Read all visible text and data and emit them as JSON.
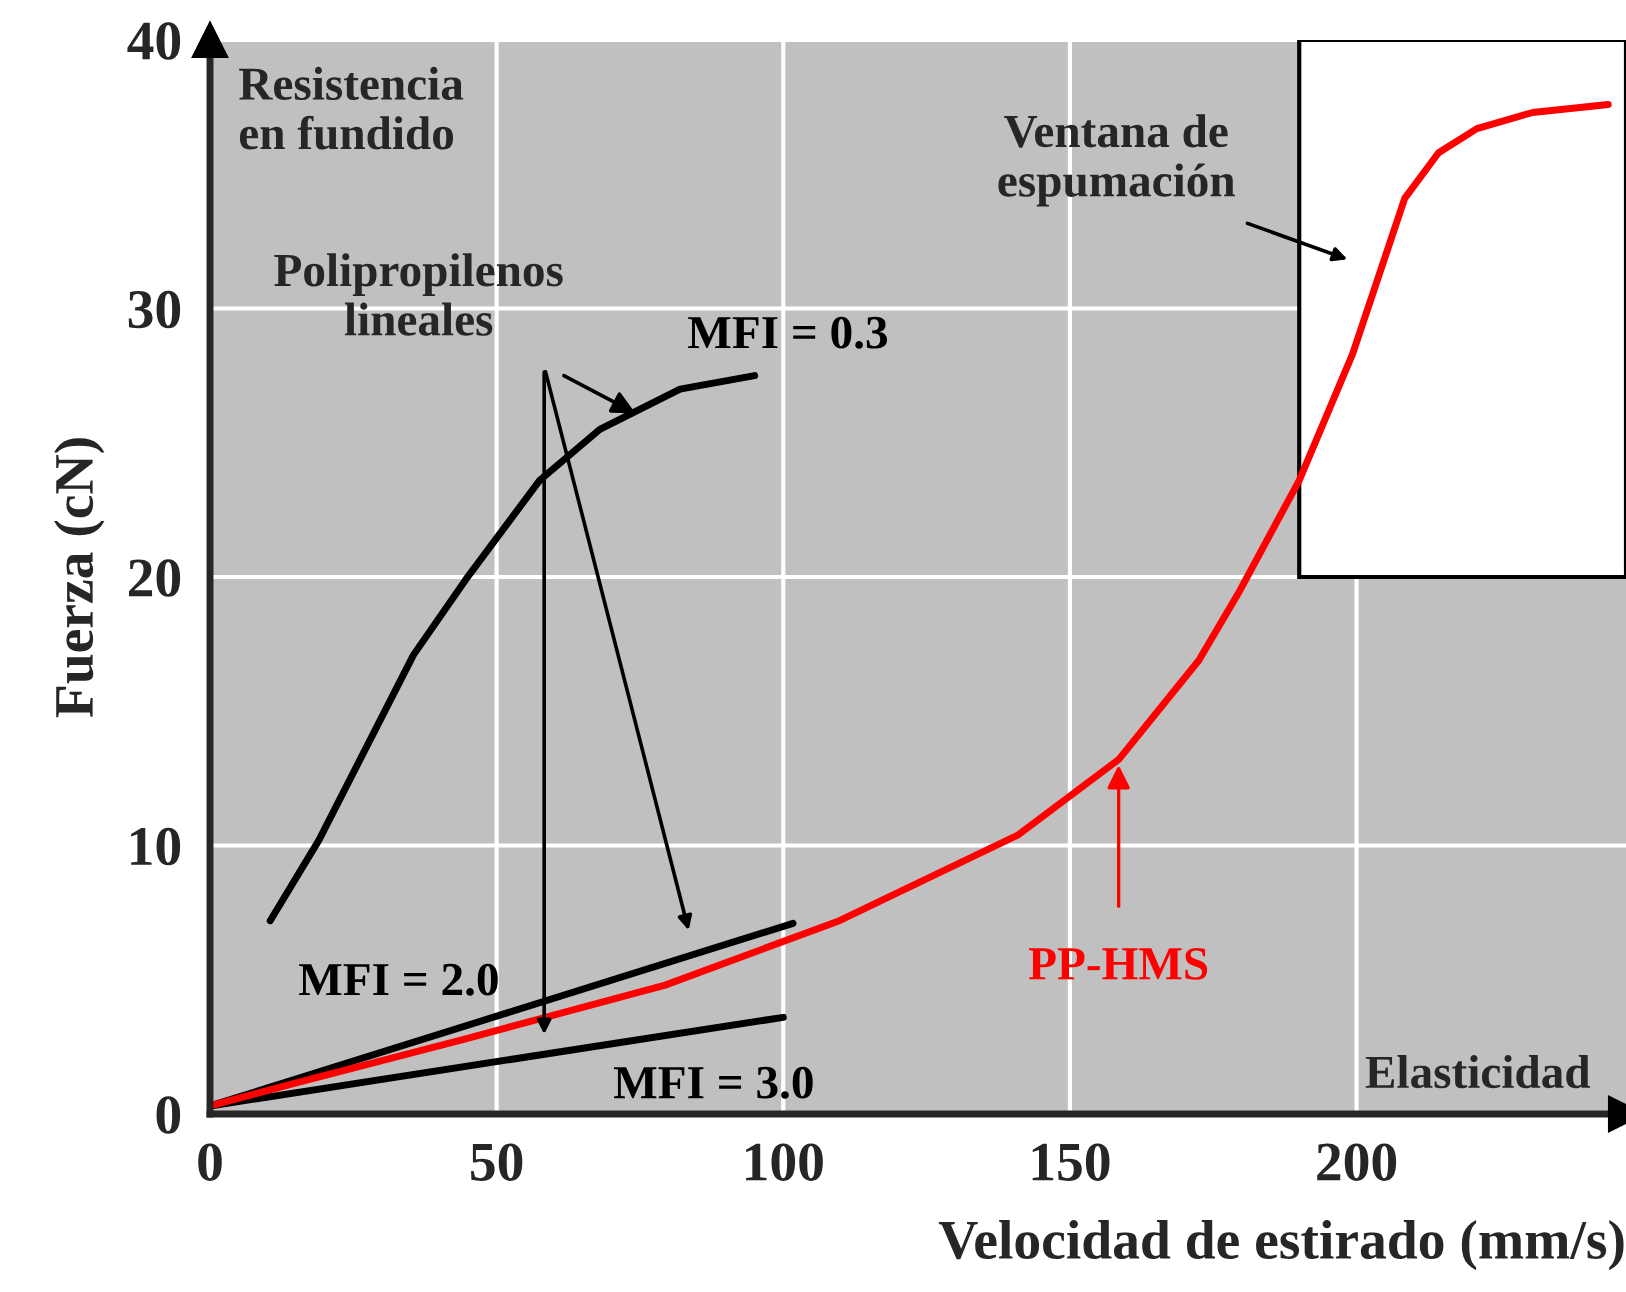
{
  "chart_data": {
    "type": "line",
    "xlabel": "Velocidad de estirado (mm/s)",
    "ylabel": "Fuerza (cN)",
    "xlim": [
      0,
      247
    ],
    "ylim": [
      0,
      40
    ],
    "xticks": [
      0,
      50,
      100,
      150,
      200
    ],
    "yticks": [
      0,
      10,
      20,
      30,
      40
    ],
    "grid": true,
    "line_style": "solid",
    "marker": "none",
    "series": [
      {
        "name": "MFI = 0.3",
        "color": "#000000",
        "x": [
          10.5,
          19,
          35.5,
          44.6,
          57.5,
          68,
          82,
          95
        ],
        "values": [
          7.2,
          10.2,
          17.1,
          19.9,
          23.6,
          25.5,
          27.0,
          27.5
        ]
      },
      {
        "name": "MFI = 2.0",
        "color": "#000000",
        "x": [
          0,
          101.7
        ],
        "values": [
          0.3,
          7.1
        ]
      },
      {
        "name": "MFI = 3.0",
        "color": "#000000",
        "x": [
          0,
          100
        ],
        "values": [
          0.3,
          3.6
        ]
      },
      {
        "name": "PP-HMS",
        "color": "#ff0000",
        "x": [
          0,
          15.7,
          44.6,
          79.4,
          109.8,
          141,
          158.5,
          172.5,
          179.4,
          190,
          199.3,
          208.4,
          214.3,
          221,
          230.7,
          243.9
        ],
        "values": [
          0.3,
          1.2,
          2.8,
          4.8,
          7.2,
          10.4,
          13.2,
          16.9,
          19.4,
          23.6,
          28.3,
          34.1,
          35.8,
          36.7,
          37.3,
          37.6
        ]
      }
    ],
    "bands": [
      {
        "axis": "x",
        "from": 190,
        "to": 247,
        "color": "#ffffff"
      }
    ],
    "annotations": [
      "Resistencia\nen fundido",
      {
        "text": "Polipropilenos\nlineales",
        "x": 74.2,
        "y": 26.1
      },
      "Ventana de\nespumación",
      "Elasticidad"
    ]
  }
}
